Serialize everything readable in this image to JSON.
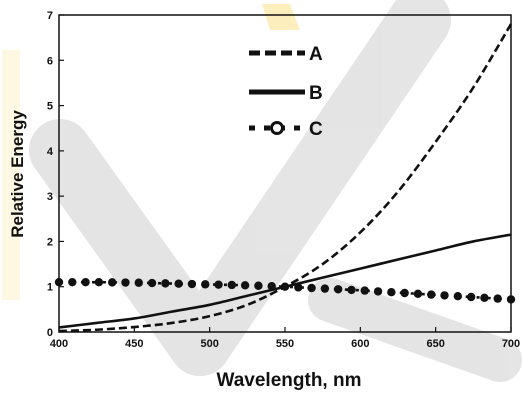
{
  "chart_data": {
    "type": "line",
    "xlabel": "Wavelength, nm",
    "ylabel": "Relative Energy",
    "xlim": [
      400,
      700
    ],
    "ylim": [
      0,
      7
    ],
    "x_ticks": [
      "400",
      "450",
      "500",
      "550",
      "600",
      "650",
      "700"
    ],
    "y_ticks": [
      "0",
      "1",
      "2",
      "3",
      "4",
      "5",
      "6",
      "7"
    ],
    "grid": false,
    "legend_position": "top-center",
    "series": [
      {
        "name": "A",
        "style": "dashed",
        "x": [
          400,
          425,
          450,
          475,
          500,
          525,
          550,
          575,
          600,
          625,
          650,
          675,
          700
        ],
        "y": [
          0.02,
          0.05,
          0.11,
          0.2,
          0.35,
          0.6,
          1.0,
          1.5,
          2.2,
          3.1,
          4.2,
          5.4,
          6.8
        ]
      },
      {
        "name": "B",
        "style": "solid",
        "x": [
          400,
          425,
          450,
          475,
          500,
          525,
          550,
          575,
          600,
          625,
          650,
          675,
          700
        ],
        "y": [
          0.1,
          0.2,
          0.3,
          0.45,
          0.6,
          0.8,
          1.0,
          1.2,
          1.4,
          1.6,
          1.8,
          2.0,
          2.15
        ]
      },
      {
        "name": "C",
        "style": "dotted-circles",
        "x": [
          400,
          425,
          450,
          475,
          500,
          525,
          550,
          575,
          600,
          625,
          650,
          675,
          700
        ],
        "y": [
          1.1,
          1.1,
          1.09,
          1.07,
          1.05,
          1.03,
          1.0,
          0.96,
          0.92,
          0.87,
          0.82,
          0.77,
          0.72
        ]
      }
    ]
  }
}
